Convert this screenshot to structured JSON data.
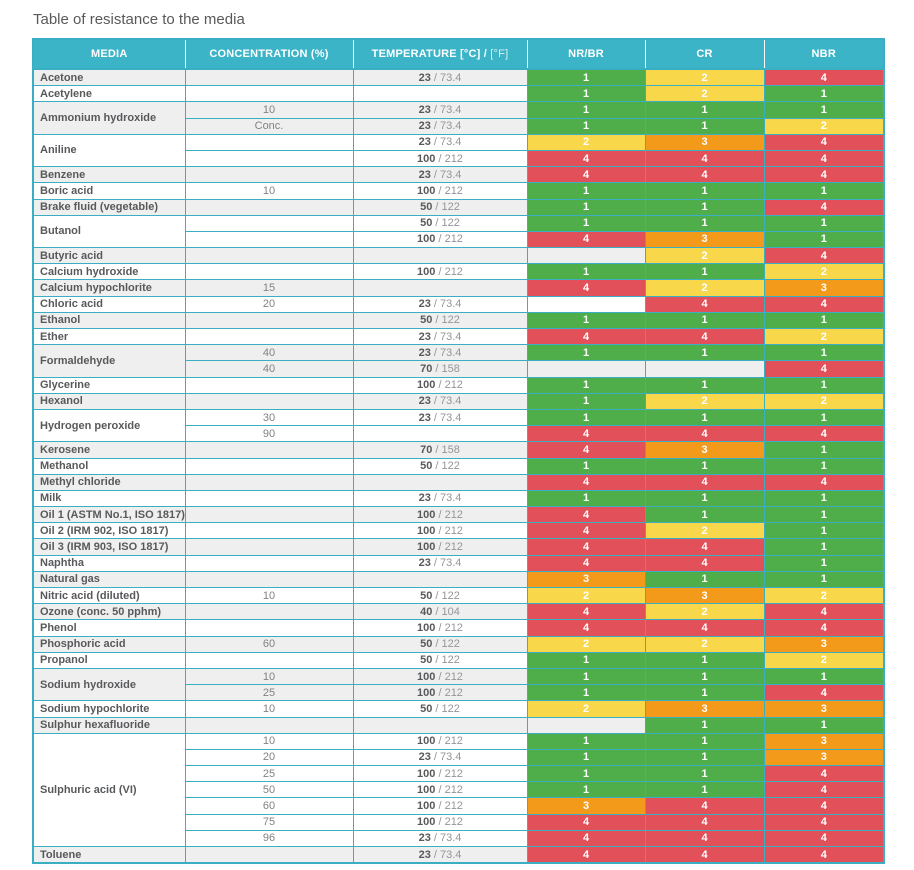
{
  "title": "Table of resistance to the media",
  "colors": {
    "header_bg": "#3cb4c8",
    "border": "#3aafc4",
    "row_stripe": "#efefef",
    "text_dark": "#58595b",
    "text_mid": "#808285",
    "text_light": "#939598",
    "rating": {
      "1": "#4fae49",
      "2": "#f8d74a",
      "3": "#f39a1b",
      "4": "#e25159"
    }
  },
  "header": {
    "media": "MEDIA",
    "concentration": "CONCENTRATION (%)",
    "temperature_main": "TEMPERATURE [°C] /",
    "temperature_sub": "[°F]",
    "nr_br": "NR/BR",
    "cr": "CR",
    "nbr": "NBR"
  },
  "table": {
    "groups": [
      {
        "media": "Acetone",
        "rows": [
          {
            "conc": "",
            "tc": "23",
            "tf": "73.4",
            "r": [
              1,
              2,
              4
            ]
          }
        ]
      },
      {
        "media": "Acetylene",
        "rows": [
          {
            "conc": "",
            "tc": "",
            "tf": "",
            "r": [
              1,
              2,
              1
            ]
          }
        ]
      },
      {
        "media": "Ammonium hydroxide",
        "rows": [
          {
            "conc": "10",
            "tc": "23",
            "tf": "73.4",
            "r": [
              1,
              1,
              1
            ]
          },
          {
            "conc": "Conc.",
            "tc": "23",
            "tf": "73.4",
            "r": [
              1,
              1,
              2
            ]
          }
        ]
      },
      {
        "media": "Aniline",
        "rows": [
          {
            "conc": "",
            "tc": "23",
            "tf": "73.4",
            "r": [
              2,
              3,
              4
            ]
          },
          {
            "conc": "",
            "tc": "100",
            "tf": "212",
            "r": [
              4,
              4,
              4
            ]
          }
        ]
      },
      {
        "media": "Benzene",
        "rows": [
          {
            "conc": "",
            "tc": "23",
            "tf": "73.4",
            "r": [
              4,
              4,
              4
            ]
          }
        ]
      },
      {
        "media": "Boric acid",
        "rows": [
          {
            "conc": "10",
            "tc": "100",
            "tf": "212",
            "r": [
              1,
              1,
              1
            ]
          }
        ]
      },
      {
        "media": "Brake fluid (vegetable)",
        "rows": [
          {
            "conc": "",
            "tc": "50",
            "tf": "122",
            "r": [
              1,
              1,
              4
            ]
          }
        ]
      },
      {
        "media": "Butanol",
        "rows": [
          {
            "conc": "",
            "tc": "50",
            "tf": "122",
            "r": [
              1,
              1,
              1
            ]
          },
          {
            "conc": "",
            "tc": "100",
            "tf": "212",
            "r": [
              4,
              3,
              1
            ]
          }
        ]
      },
      {
        "media": "Butyric acid",
        "rows": [
          {
            "conc": "",
            "tc": "",
            "tf": "",
            "r": [
              null,
              2,
              4
            ]
          }
        ]
      },
      {
        "media": "Calcium hydroxide",
        "rows": [
          {
            "conc": "",
            "tc": "100",
            "tf": "212",
            "r": [
              1,
              1,
              2
            ]
          }
        ]
      },
      {
        "media": "Calcium hypochlorite",
        "rows": [
          {
            "conc": "15",
            "tc": "",
            "tf": "",
            "r": [
              4,
              2,
              3
            ]
          }
        ]
      },
      {
        "media": "Chloric acid",
        "rows": [
          {
            "conc": "20",
            "tc": "23",
            "tf": "73.4",
            "r": [
              null,
              4,
              4
            ]
          }
        ]
      },
      {
        "media": "Ethanol",
        "rows": [
          {
            "conc": "",
            "tc": "50",
            "tf": "122",
            "r": [
              1,
              1,
              1
            ]
          }
        ]
      },
      {
        "media": "Ether",
        "rows": [
          {
            "conc": "",
            "tc": "23",
            "tf": "73.4",
            "r": [
              4,
              4,
              2
            ]
          }
        ]
      },
      {
        "media": "Formaldehyde",
        "rows": [
          {
            "conc": "40",
            "tc": "23",
            "tf": "73.4",
            "r": [
              1,
              1,
              1
            ]
          },
          {
            "conc": "40",
            "tc": "70",
            "tf": "158",
            "r": [
              null,
              null,
              4
            ]
          }
        ]
      },
      {
        "media": "Glycerine",
        "rows": [
          {
            "conc": "",
            "tc": "100",
            "tf": "212",
            "r": [
              1,
              1,
              1
            ]
          }
        ]
      },
      {
        "media": "Hexanol",
        "rows": [
          {
            "conc": "",
            "tc": "23",
            "tf": "73.4",
            "r": [
              1,
              2,
              2
            ]
          }
        ]
      },
      {
        "media": "Hydrogen peroxide",
        "rows": [
          {
            "conc": "30",
            "tc": "23",
            "tf": "73.4",
            "r": [
              1,
              1,
              1
            ]
          },
          {
            "conc": "90",
            "tc": "",
            "tf": "",
            "r": [
              4,
              4,
              4
            ]
          }
        ]
      },
      {
        "media": "Kerosene",
        "rows": [
          {
            "conc": "",
            "tc": "70",
            "tf": "158",
            "r": [
              4,
              3,
              1
            ]
          }
        ]
      },
      {
        "media": "Methanol",
        "rows": [
          {
            "conc": "",
            "tc": "50",
            "tf": "122",
            "r": [
              1,
              1,
              1
            ]
          }
        ]
      },
      {
        "media": "Methyl chloride",
        "rows": [
          {
            "conc": "",
            "tc": "",
            "tf": "",
            "r": [
              4,
              4,
              4
            ]
          }
        ]
      },
      {
        "media": "Milk",
        "rows": [
          {
            "conc": "",
            "tc": "23",
            "tf": "73.4",
            "r": [
              1,
              1,
              1
            ]
          }
        ]
      },
      {
        "media": "Oil 1 (ASTM No.1, ISO 1817)",
        "rows": [
          {
            "conc": "",
            "tc": "100",
            "tf": "212",
            "r": [
              4,
              1,
              1
            ]
          }
        ]
      },
      {
        "media": "Oil 2 (IRM 902, ISO 1817)",
        "rows": [
          {
            "conc": "",
            "tc": "100",
            "tf": "212",
            "r": [
              4,
              2,
              1
            ]
          }
        ]
      },
      {
        "media": "Oil 3 (IRM 903, ISO 1817)",
        "rows": [
          {
            "conc": "",
            "tc": "100",
            "tf": "212",
            "r": [
              4,
              4,
              1
            ]
          }
        ]
      },
      {
        "media": "Naphtha",
        "rows": [
          {
            "conc": "",
            "tc": "23",
            "tf": "73.4",
            "r": [
              4,
              4,
              1
            ]
          }
        ]
      },
      {
        "media": "Natural gas",
        "rows": [
          {
            "conc": "",
            "tc": "",
            "tf": "",
            "r": [
              3,
              1,
              1
            ]
          }
        ]
      },
      {
        "media": "Nitric acid (diluted)",
        "rows": [
          {
            "conc": "10",
            "tc": "50",
            "tf": "122",
            "r": [
              2,
              3,
              2
            ]
          }
        ]
      },
      {
        "media": "Ozone (conc. 50 pphm)",
        "rows": [
          {
            "conc": "",
            "tc": "40",
            "tf": "104",
            "r": [
              4,
              2,
              4
            ]
          }
        ]
      },
      {
        "media": "Phenol",
        "rows": [
          {
            "conc": "",
            "tc": "100",
            "tf": "212",
            "r": [
              4,
              4,
              4
            ]
          }
        ]
      },
      {
        "media": "Phosphoric acid",
        "rows": [
          {
            "conc": "60",
            "tc": "50",
            "tf": "122",
            "r": [
              2,
              2,
              3
            ]
          }
        ]
      },
      {
        "media": "Propanol",
        "rows": [
          {
            "conc": "",
            "tc": "50",
            "tf": "122",
            "r": [
              1,
              1,
              2
            ]
          }
        ]
      },
      {
        "media": "Sodium hydroxide",
        "rows": [
          {
            "conc": "10",
            "tc": "100",
            "tf": "212",
            "r": [
              1,
              1,
              1
            ]
          },
          {
            "conc": "25",
            "tc": "100",
            "tf": "212",
            "r": [
              1,
              1,
              4
            ]
          }
        ]
      },
      {
        "media": "Sodium hypochlorite",
        "rows": [
          {
            "conc": "10",
            "tc": "50",
            "tf": "122",
            "r": [
              2,
              3,
              3
            ]
          }
        ]
      },
      {
        "media": "Sulphur hexafluoride",
        "rows": [
          {
            "conc": "",
            "tc": "",
            "tf": "",
            "r": [
              null,
              1,
              1
            ]
          }
        ]
      },
      {
        "media": "Sulphuric acid (VI)",
        "rows": [
          {
            "conc": "10",
            "tc": "100",
            "tf": "212",
            "r": [
              1,
              1,
              3
            ]
          },
          {
            "conc": "20",
            "tc": "23",
            "tf": "73.4",
            "r": [
              1,
              1,
              3
            ]
          },
          {
            "conc": "25",
            "tc": "100",
            "tf": "212",
            "r": [
              1,
              1,
              4
            ]
          },
          {
            "conc": "50",
            "tc": "100",
            "tf": "212",
            "r": [
              1,
              1,
              4
            ]
          },
          {
            "conc": "60",
            "tc": "100",
            "tf": "212",
            "r": [
              3,
              4,
              4
            ]
          },
          {
            "conc": "75",
            "tc": "100",
            "tf": "212",
            "r": [
              4,
              4,
              4
            ]
          },
          {
            "conc": "96",
            "tc": "23",
            "tf": "73.4",
            "r": [
              4,
              4,
              4
            ]
          }
        ]
      },
      {
        "media": "Toluene",
        "rows": [
          {
            "conc": "",
            "tc": "23",
            "tf": "73.4",
            "r": [
              4,
              4,
              4
            ]
          }
        ]
      }
    ]
  }
}
